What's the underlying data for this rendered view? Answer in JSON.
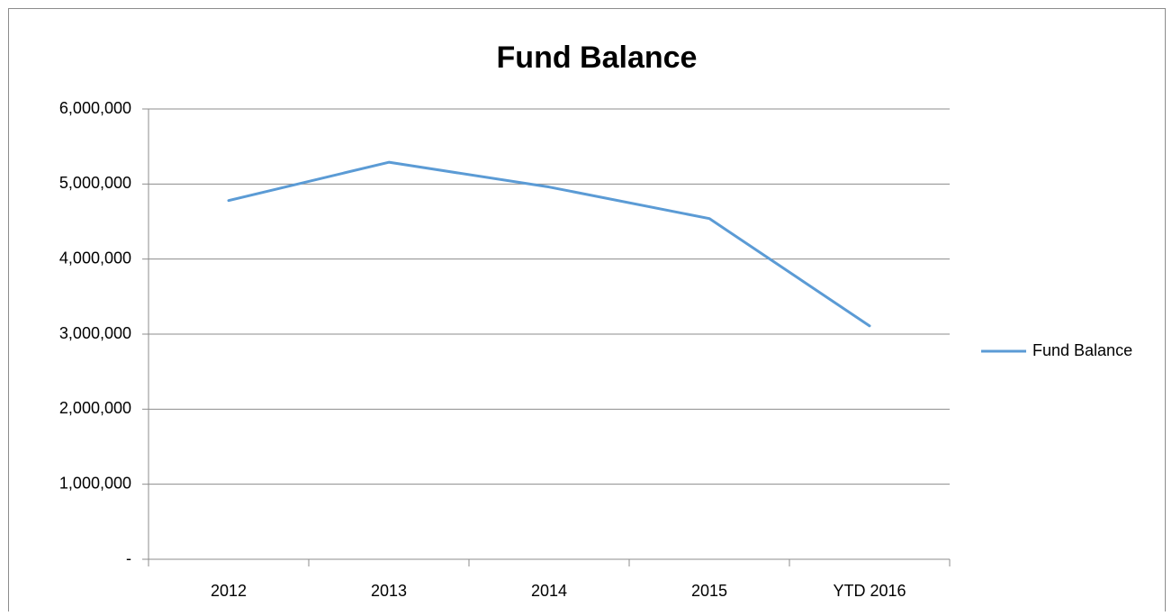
{
  "chart_data": {
    "type": "line",
    "title": "Fund Balance",
    "categories": [
      "2012",
      "2013",
      "2014",
      "2015",
      "YTD 2016"
    ],
    "series": [
      {
        "name": "Fund Balance",
        "color": "#5b9bd5",
        "values": [
          4780000,
          5290000,
          4960000,
          4540000,
          3110000
        ]
      }
    ],
    "ylim": [
      0,
      6000000
    ],
    "yticks": [
      {
        "value": 0,
        "label": "-"
      },
      {
        "value": 1000000,
        "label": "1,000,000"
      },
      {
        "value": 2000000,
        "label": "2,000,000"
      },
      {
        "value": 3000000,
        "label": "3,000,000"
      },
      {
        "value": 4000000,
        "label": "4,000,000"
      },
      {
        "value": 5000000,
        "label": "5,000,000"
      },
      {
        "value": 6000000,
        "label": "6,000,000"
      }
    ],
    "grid": true,
    "legend": "right"
  }
}
